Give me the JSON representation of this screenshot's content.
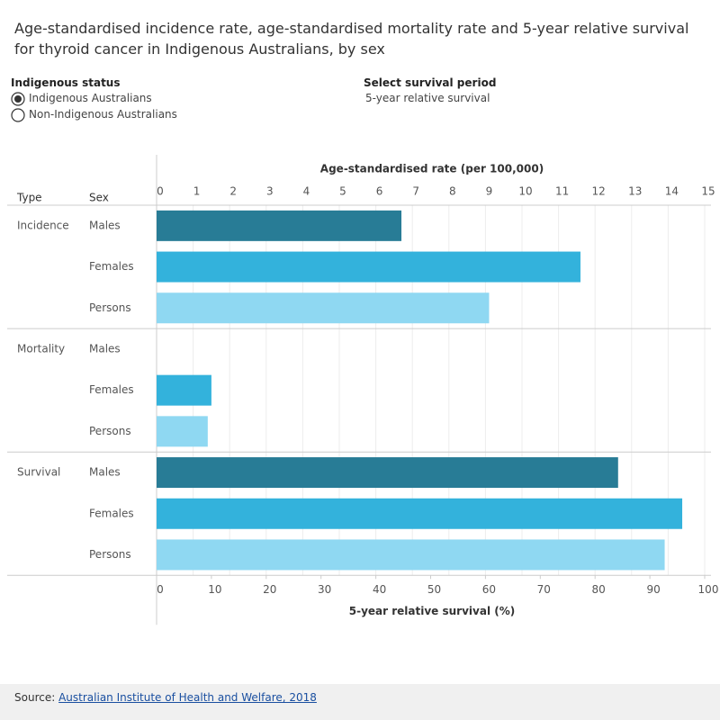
{
  "title": "Age-standardised incidence rate, age-standardised mortality rate and 5-year relative survival for thyroid cancer in Indigenous Australians, by sex",
  "controls": {
    "indigenous_status": {
      "label": "Indigenous status",
      "options": [
        "Indigenous Australians",
        "Non-Indigenous Australians"
      ],
      "selected": 0
    },
    "survival_period": {
      "label": "Select survival period",
      "value": "5-year relative survival"
    }
  },
  "chart_data": {
    "type": "bar",
    "orientation": "horizontal",
    "row_headers": [
      "Type",
      "Sex"
    ],
    "xlabel": "Age-standardised rate (per 100,000)",
    "xlim": [
      0,
      15
    ],
    "xticks": [
      0,
      1,
      2,
      3,
      4,
      5,
      6,
      7,
      8,
      9,
      10,
      11,
      12,
      13,
      14,
      15
    ],
    "x2label": "5-year relative survival (%)",
    "x2lim": [
      0,
      100
    ],
    "x2ticks": [
      0,
      10,
      20,
      30,
      40,
      50,
      60,
      70,
      80,
      90,
      100
    ],
    "grid": true,
    "colors": [
      "#287c96",
      "#33b2dc",
      "#8fd8f2"
    ],
    "groups": [
      {
        "name": "Incidence",
        "axis": "x",
        "categories": [
          "Males",
          "Females",
          "Persons"
        ],
        "values": [
          6.7,
          11.6,
          9.1
        ]
      },
      {
        "name": "Mortality",
        "axis": "x",
        "categories": [
          "Males",
          "Females",
          "Persons"
        ],
        "values": [
          null,
          1.5,
          1.4
        ]
      },
      {
        "name": "Survival",
        "axis": "x2",
        "categories": [
          "Males",
          "Females",
          "Persons"
        ],
        "values": [
          84.2,
          95.9,
          92.7
        ]
      }
    ]
  },
  "source": {
    "label": "Source:",
    "link": "Australian Institute of Health and Welfare, 2018"
  }
}
